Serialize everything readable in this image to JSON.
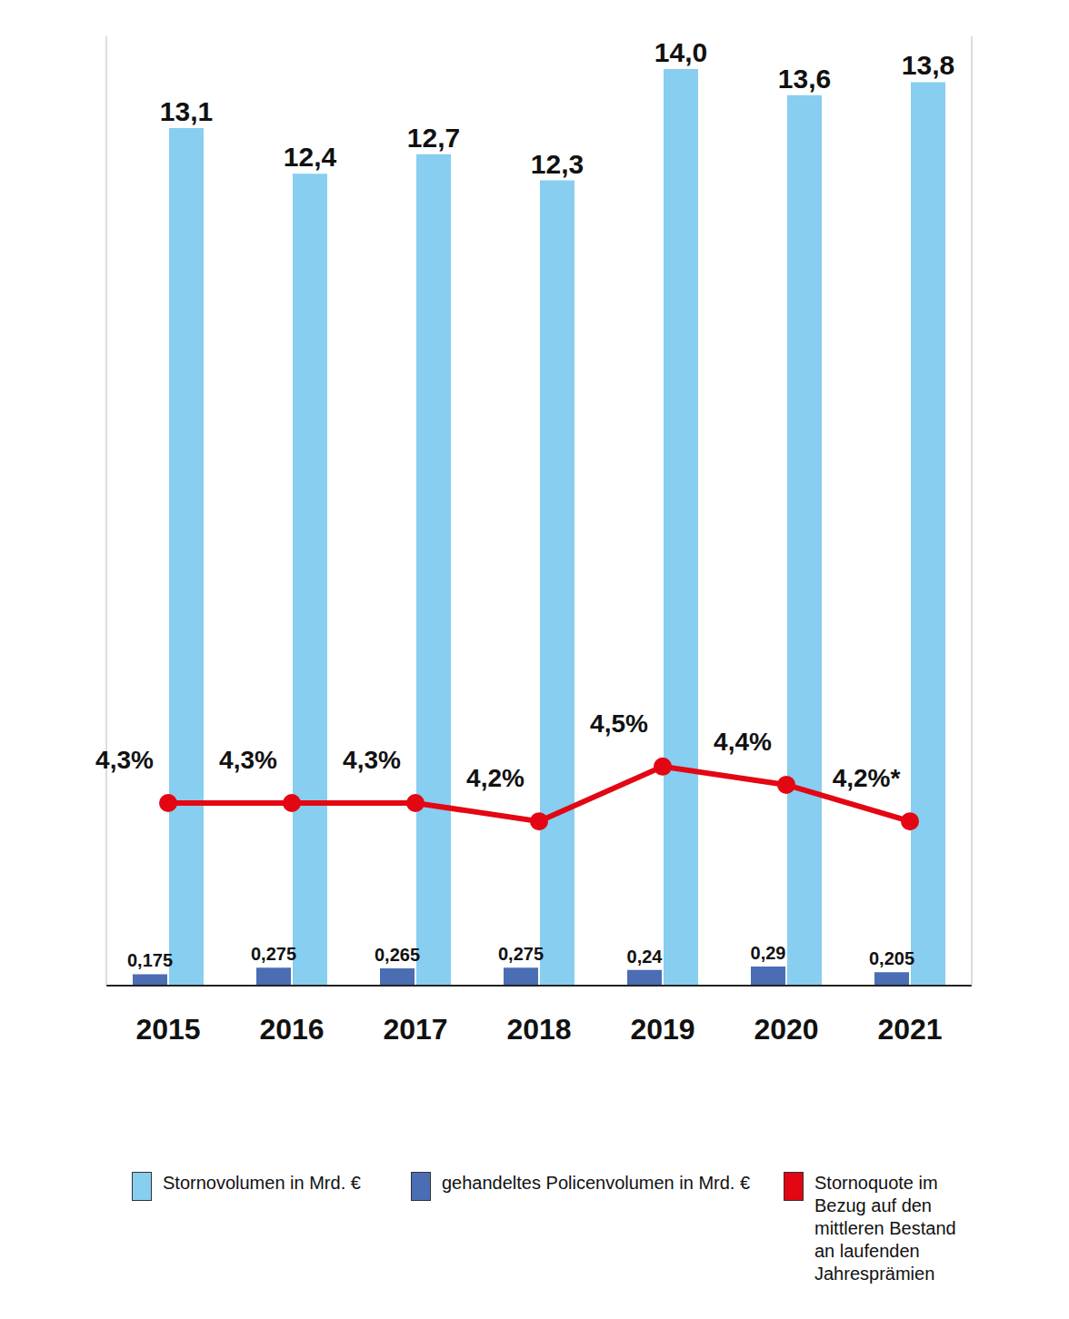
{
  "chart_data": {
    "type": "bar",
    "categories": [
      "2015",
      "2016",
      "2017",
      "2018",
      "2019",
      "2020",
      "2021"
    ],
    "series": [
      {
        "name": "Stornovolumen in Mrd. €",
        "type": "bar",
        "color": "#87cef0",
        "values": [
          13.1,
          12.4,
          12.7,
          12.3,
          14.0,
          13.6,
          13.8
        ],
        "value_labels": [
          "13,1",
          "12,4",
          "12,7",
          "12,3",
          "14,0",
          "13,6",
          "13,8"
        ]
      },
      {
        "name": "gehandeltes Policenvolumen in Mrd. €",
        "type": "bar",
        "color": "#4a6db4",
        "values": [
          0.175,
          0.275,
          0.265,
          0.275,
          0.24,
          0.29,
          0.205
        ],
        "value_labels": [
          "0,175",
          "0,275",
          "0,265",
          "0,275",
          "0,24",
          "0,29",
          "0,205"
        ]
      },
      {
        "name": "Stornoquote im Bezug auf den mittleren Bestand an laufenden Jahresprämien",
        "type": "line",
        "axis": "y2",
        "marker": "circle",
        "color": "#e30613",
        "values": [
          4.3,
          4.3,
          4.3,
          4.2,
          4.5,
          4.4,
          4.2
        ],
        "value_labels": [
          "4,3%",
          "4,3%",
          "4,3%",
          "4,2%",
          "4,5%",
          "4,4%",
          "4,2%*"
        ]
      }
    ],
    "ylim": [
      0,
      14.5
    ],
    "y2lim": [
      3.3,
      8.5
    ],
    "data_labels": true,
    "tick_labels": "x",
    "legend": "bottom",
    "grid": false
  }
}
